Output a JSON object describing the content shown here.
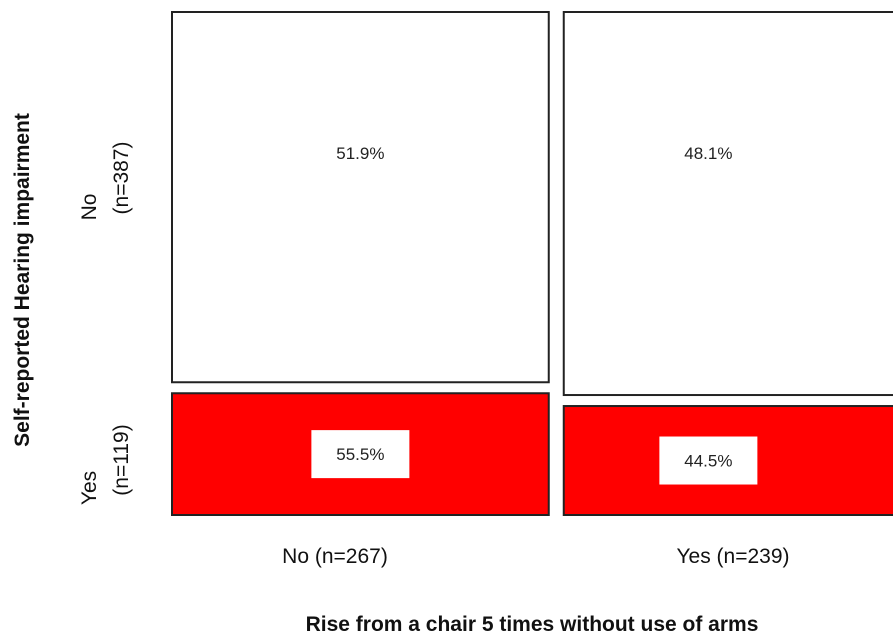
{
  "chart_data": {
    "type": "mosaic",
    "xlabel": "Rise from a chair 5 times without use of arms",
    "ylabel": "Self-reported Hearing impairment",
    "x_categories": [
      "No (n=267)",
      "Yes (n=239)"
    ],
    "y_categories": [
      {
        "line1": "No",
        "line2": "(n=387)"
      },
      {
        "line1": "Yes",
        "line2": "(n=119)"
      }
    ],
    "x_counts": [
      267,
      239
    ],
    "y_counts": [
      387,
      119
    ],
    "cells": [
      {
        "x": "No (n=267)",
        "y": "No",
        "value": 51.9,
        "label": "51.9%"
      },
      {
        "x": "Yes (n=239)",
        "y": "No",
        "value": 48.1,
        "label": "48.1%"
      },
      {
        "x": "No (n=267)",
        "y": "Yes",
        "value": 55.5,
        "label": "55.5%"
      },
      {
        "x": "Yes (n=239)",
        "y": "Yes",
        "value": 44.5,
        "label": "44.5%"
      }
    ],
    "colors": {
      "no_fill": "#ffffff",
      "yes_fill": "#ff0000",
      "border": "#222222",
      "label_box": "#ffffff"
    },
    "grid": false,
    "legend": "none"
  }
}
